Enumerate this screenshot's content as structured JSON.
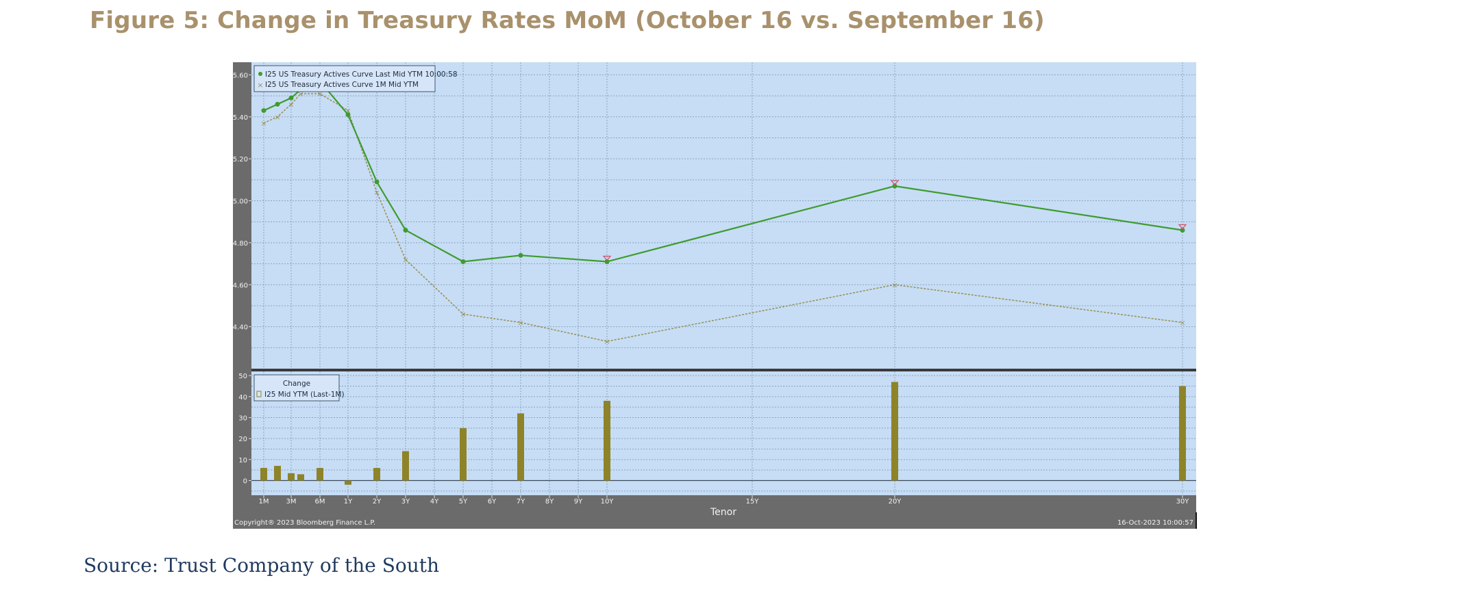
{
  "figure": {
    "title": "Figure 5: Change in Treasury Rates MoM (October 16 vs. September 16)",
    "source": "Source: Trust Company of the South"
  },
  "colors": {
    "plot_bg": "#c6ddf5",
    "frame": "#6b6b6b",
    "last_line": "#3f9b2d",
    "month_line": "#9a9258",
    "bar": "#8e8328",
    "title": "#a8916c",
    "source": "#1f3a5f"
  },
  "chart_data": [
    {
      "type": "line",
      "legend": [
        "I25 US Treasury Actives Curve Last Mid YTM 10:00:58",
        "I25 US Treasury Actives Curve 1M Mid YTM"
      ],
      "legend_position": "top-left",
      "x_ticks": [
        "1M",
        "3M",
        "6M",
        "1Y",
        "2Y",
        "3Y",
        "4Y",
        "5Y",
        "6Y",
        "7Y",
        "8Y",
        "9Y",
        "10Y",
        "15Y",
        "20Y",
        "30Y"
      ],
      "x_tick_years": [
        0.0833,
        0.25,
        0.5,
        1,
        2,
        3,
        4,
        5,
        6,
        7,
        8,
        9,
        10,
        15,
        20,
        30
      ],
      "xlabel": "Tenor",
      "ylim": [
        4.2,
        5.66
      ],
      "yticks": [
        "5.60",
        "5.40",
        "5.20",
        "5.00",
        "4.80",
        "4.60",
        "4.40"
      ],
      "grid": true,
      "series": [
        {
          "name": "I25 US Treasury Actives Curve Last Mid YTM 10:00:58",
          "tenor_years": [
            0.0833,
            0.1667,
            0.25,
            0.3333,
            0.5,
            1,
            2,
            3,
            5,
            7,
            10,
            20,
            30
          ],
          "values": [
            5.43,
            5.46,
            5.49,
            5.53,
            5.57,
            5.41,
            5.09,
            4.86,
            4.71,
            4.74,
            4.71,
            5.07,
            4.86
          ]
        },
        {
          "name": "I25 US Treasury Actives Curve 1M Mid YTM",
          "tenor_years": [
            0.0833,
            0.1667,
            0.25,
            0.3333,
            0.5,
            1,
            2,
            3,
            5,
            7,
            10,
            20,
            30
          ],
          "values": [
            5.37,
            5.4,
            5.46,
            5.51,
            5.51,
            5.43,
            5.04,
            4.72,
            4.46,
            4.42,
            4.33,
            4.6,
            4.42
          ]
        }
      ]
    },
    {
      "type": "bar",
      "legend": [
        "Change",
        "I25 Mid YTM (Last-1M)"
      ],
      "legend_position": "top-left",
      "ylim": [
        -7,
        52
      ],
      "yticks": [
        "50",
        "40",
        "30",
        "20",
        "10",
        "0"
      ],
      "grid": true,
      "tenor_years": [
        0.0833,
        0.1667,
        0.25,
        0.3333,
        0.5,
        1,
        2,
        3,
        5,
        7,
        10,
        20,
        30
      ],
      "values": [
        6,
        7,
        3.5,
        3,
        6,
        -2,
        6,
        14,
        25,
        32,
        38,
        47,
        45
      ]
    }
  ],
  "footer": {
    "copyright": "Copyright® 2023 Bloomberg Finance L.P.",
    "timestamp": "16-Oct-2023 10:00:57"
  }
}
